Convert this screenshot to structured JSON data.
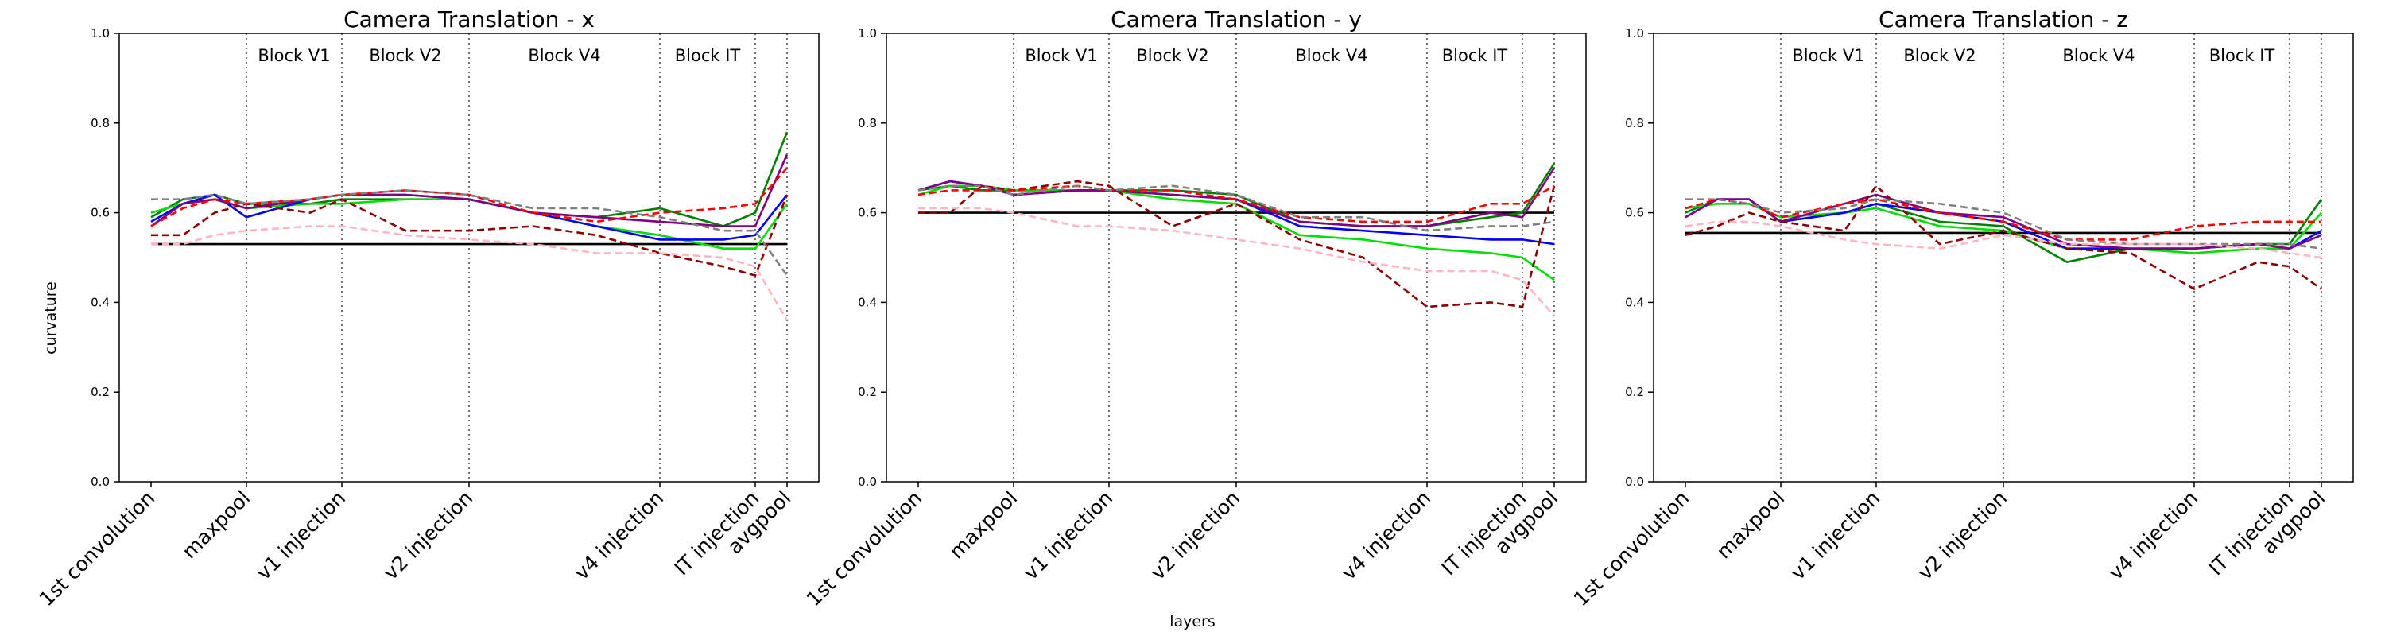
{
  "ylabel": "curvature",
  "xlabel": "layers",
  "chart_data": [
    {
      "type": "line",
      "title": "Camera Translation - x",
      "x": [
        0,
        1,
        2,
        3,
        5,
        6,
        8,
        10,
        12,
        14,
        16,
        18,
        19,
        20
      ],
      "xlim": [
        -1,
        21
      ],
      "xticks": [
        {
          "value": 0,
          "label": "1st convolution"
        },
        {
          "value": 3,
          "label": "maxpool"
        },
        {
          "value": 6,
          "label": "v1 injection"
        },
        {
          "value": 10,
          "label": "v2 injection"
        },
        {
          "value": 16,
          "label": "v4 injection"
        },
        {
          "value": 19,
          "label": "IT injection"
        },
        {
          "value": 20,
          "label": "avgpool"
        }
      ],
      "blocks": [
        "Block V1",
        "Block V2",
        "Block V4",
        "Block IT"
      ],
      "ylim": [
        0,
        1
      ],
      "yticks": [
        {
          "value": 0,
          "label": "0.0"
        },
        {
          "value": 0.2,
          "label": "0.2"
        },
        {
          "value": 0.4,
          "label": "0.4"
        },
        {
          "value": 0.6,
          "label": "0.6"
        },
        {
          "value": 0.8,
          "label": "0.8"
        },
        {
          "value": 1,
          "label": "1.0"
        }
      ],
      "baseline": 0.53,
      "baseline_color": "#000000",
      "series": [
        {
          "color": "#008000",
          "dashed": false,
          "values": [
            0.59,
            0.63,
            0.64,
            0.62,
            0.62,
            0.63,
            0.63,
            0.63,
            0.6,
            0.59,
            0.61,
            0.57,
            0.6,
            0.78
          ]
        },
        {
          "color": "#00e000",
          "dashed": false,
          "values": [
            0.6,
            0.62,
            0.63,
            0.61,
            0.62,
            0.62,
            0.63,
            0.63,
            0.6,
            0.57,
            0.55,
            0.52,
            0.52,
            0.62
          ]
        },
        {
          "color": "#0000ff",
          "dashed": false,
          "values": [
            0.58,
            0.62,
            0.64,
            0.59,
            0.63,
            0.64,
            0.64,
            0.63,
            0.6,
            0.57,
            0.54,
            0.54,
            0.55,
            0.64
          ]
        },
        {
          "color": "#800080",
          "dashed": false,
          "values": [
            0.57,
            0.62,
            0.63,
            0.61,
            0.63,
            0.64,
            0.64,
            0.63,
            0.6,
            0.59,
            0.58,
            0.57,
            0.57,
            0.73
          ]
        },
        {
          "color": "#8b0000",
          "dashed": true,
          "values": [
            0.55,
            0.55,
            0.6,
            0.62,
            0.6,
            0.63,
            0.56,
            0.56,
            0.57,
            0.55,
            0.51,
            0.48,
            0.46,
            0.64
          ]
        },
        {
          "color": "#ff0000",
          "dashed": true,
          "values": [
            0.57,
            0.61,
            0.63,
            0.62,
            0.63,
            0.64,
            0.65,
            0.64,
            0.6,
            0.58,
            0.6,
            0.61,
            0.62,
            0.7
          ]
        },
        {
          "color": "#808080",
          "dashed": true,
          "values": [
            0.63,
            0.63,
            0.64,
            0.62,
            0.63,
            0.64,
            0.65,
            0.64,
            0.61,
            0.61,
            0.59,
            0.56,
            0.56,
            0.46
          ]
        },
        {
          "color": "#ffb6c1",
          "dashed": true,
          "values": [
            0.53,
            0.53,
            0.55,
            0.56,
            0.57,
            0.57,
            0.55,
            0.54,
            0.53,
            0.51,
            0.51,
            0.5,
            0.48,
            0.36
          ]
        }
      ]
    },
    {
      "type": "line",
      "title": "Camera Translation - y",
      "x": [
        0,
        1,
        2,
        3,
        5,
        6,
        8,
        10,
        12,
        14,
        16,
        18,
        19,
        20
      ],
      "xlim": [
        -1,
        21
      ],
      "xticks": [
        {
          "value": 0,
          "label": "1st convolution"
        },
        {
          "value": 3,
          "label": "maxpool"
        },
        {
          "value": 6,
          "label": "v1 injection"
        },
        {
          "value": 10,
          "label": "v2 injection"
        },
        {
          "value": 16,
          "label": "v4 injection"
        },
        {
          "value": 19,
          "label": "IT injection"
        },
        {
          "value": 20,
          "label": "avgpool"
        }
      ],
      "blocks": [
        "Block V1",
        "Block V2",
        "Block V4",
        "Block IT"
      ],
      "ylim": [
        0,
        1
      ],
      "yticks": [
        {
          "value": 0,
          "label": "0.0"
        },
        {
          "value": 0.2,
          "label": "0.2"
        },
        {
          "value": 0.4,
          "label": "0.4"
        },
        {
          "value": 0.6,
          "label": "0.6"
        },
        {
          "value": 0.8,
          "label": "0.8"
        },
        {
          "value": 1,
          "label": "1.0"
        }
      ],
      "baseline": 0.6,
      "baseline_color": "#000000",
      "series": [
        {
          "color": "#008000",
          "dashed": false,
          "values": [
            0.65,
            0.66,
            0.65,
            0.65,
            0.65,
            0.65,
            0.65,
            0.64,
            0.58,
            0.57,
            0.57,
            0.59,
            0.6,
            0.71
          ]
        },
        {
          "color": "#00e000",
          "dashed": false,
          "values": [
            0.64,
            0.66,
            0.66,
            0.65,
            0.65,
            0.65,
            0.63,
            0.62,
            0.55,
            0.54,
            0.52,
            0.51,
            0.5,
            0.45
          ]
        },
        {
          "color": "#0000ff",
          "dashed": false,
          "values": [
            0.65,
            0.67,
            0.66,
            0.64,
            0.65,
            0.65,
            0.64,
            0.63,
            0.57,
            0.56,
            0.55,
            0.54,
            0.54,
            0.53
          ]
        },
        {
          "color": "#800080",
          "dashed": false,
          "values": [
            0.65,
            0.67,
            0.66,
            0.64,
            0.65,
            0.65,
            0.64,
            0.63,
            0.58,
            0.57,
            0.57,
            0.6,
            0.59,
            0.7
          ]
        },
        {
          "color": "#8b0000",
          "dashed": true,
          "values": [
            0.6,
            0.6,
            0.66,
            0.65,
            0.67,
            0.66,
            0.57,
            0.62,
            0.54,
            0.5,
            0.39,
            0.4,
            0.39,
            0.66
          ]
        },
        {
          "color": "#ff0000",
          "dashed": true,
          "values": [
            0.64,
            0.65,
            0.65,
            0.65,
            0.66,
            0.65,
            0.65,
            0.63,
            0.59,
            0.58,
            0.58,
            0.62,
            0.62,
            0.66
          ]
        },
        {
          "color": "#808080",
          "dashed": true,
          "values": [
            0.65,
            0.66,
            0.66,
            0.64,
            0.66,
            0.65,
            0.66,
            0.64,
            0.59,
            0.59,
            0.56,
            0.57,
            0.57,
            0.58
          ]
        },
        {
          "color": "#ffb6c1",
          "dashed": true,
          "values": [
            0.61,
            0.61,
            0.61,
            0.6,
            0.57,
            0.57,
            0.56,
            0.54,
            0.52,
            0.49,
            0.47,
            0.47,
            0.45,
            0.37
          ]
        }
      ]
    },
    {
      "type": "line",
      "title": "Camera Translation - z",
      "x": [
        0,
        1,
        2,
        3,
        5,
        6,
        8,
        10,
        12,
        14,
        16,
        18,
        19,
        20
      ],
      "xlim": [
        -1,
        21
      ],
      "xticks": [
        {
          "value": 0,
          "label": "1st convolution"
        },
        {
          "value": 3,
          "label": "maxpool"
        },
        {
          "value": 6,
          "label": "v1 injection"
        },
        {
          "value": 10,
          "label": "v2 injection"
        },
        {
          "value": 16,
          "label": "v4 injection"
        },
        {
          "value": 19,
          "label": "IT injection"
        },
        {
          "value": 20,
          "label": "avgpool"
        }
      ],
      "blocks": [
        "Block V1",
        "Block V2",
        "Block V4",
        "Block IT"
      ],
      "ylim": [
        0,
        1
      ],
      "yticks": [
        {
          "value": 0,
          "label": "0.0"
        },
        {
          "value": 0.2,
          "label": "0.2"
        },
        {
          "value": 0.4,
          "label": "0.4"
        },
        {
          "value": 0.6,
          "label": "0.6"
        },
        {
          "value": 0.8,
          "label": "0.8"
        },
        {
          "value": 1,
          "label": "1.0"
        }
      ],
      "baseline": 0.555,
      "baseline_color": "#000000",
      "series": [
        {
          "color": "#008000",
          "dashed": false,
          "values": [
            0.6,
            0.63,
            0.63,
            0.58,
            0.6,
            0.62,
            0.58,
            0.57,
            0.49,
            0.52,
            0.52,
            0.53,
            0.53,
            0.63
          ]
        },
        {
          "color": "#00e000",
          "dashed": false,
          "values": [
            0.61,
            0.62,
            0.62,
            0.59,
            0.6,
            0.61,
            0.57,
            0.56,
            0.52,
            0.52,
            0.51,
            0.52,
            0.52,
            0.6
          ]
        },
        {
          "color": "#0000ff",
          "dashed": false,
          "values": [
            0.59,
            0.63,
            0.63,
            0.58,
            0.6,
            0.62,
            0.6,
            0.58,
            0.52,
            0.52,
            0.52,
            0.53,
            0.52,
            0.56
          ]
        },
        {
          "color": "#800080",
          "dashed": false,
          "values": [
            0.59,
            0.63,
            0.63,
            0.58,
            0.62,
            0.64,
            0.6,
            0.59,
            0.53,
            0.52,
            0.52,
            0.53,
            0.52,
            0.55
          ]
        },
        {
          "color": "#8b0000",
          "dashed": true,
          "values": [
            0.55,
            0.57,
            0.6,
            0.58,
            0.56,
            0.66,
            0.53,
            0.56,
            0.52,
            0.51,
            0.43,
            0.49,
            0.48,
            0.43
          ]
        },
        {
          "color": "#ff0000",
          "dashed": true,
          "values": [
            0.61,
            0.63,
            0.62,
            0.59,
            0.62,
            0.63,
            0.6,
            0.58,
            0.54,
            0.54,
            0.57,
            0.58,
            0.58,
            0.58
          ]
        },
        {
          "color": "#808080",
          "dashed": true,
          "values": [
            0.63,
            0.63,
            0.62,
            0.6,
            0.61,
            0.63,
            0.62,
            0.6,
            0.54,
            0.53,
            0.53,
            0.53,
            0.53,
            0.52
          ]
        },
        {
          "color": "#ffb6c1",
          "dashed": true,
          "values": [
            0.57,
            0.58,
            0.58,
            0.57,
            0.54,
            0.53,
            0.52,
            0.55,
            0.53,
            0.53,
            0.53,
            0.52,
            0.51,
            0.5
          ]
        }
      ]
    }
  ]
}
